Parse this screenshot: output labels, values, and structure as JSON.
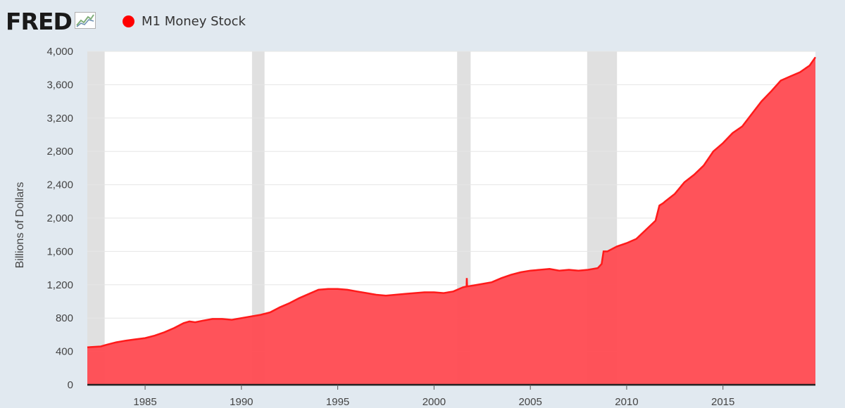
{
  "header": {
    "logo_text": "FRED",
    "logo_icon": "fred-chart-icon",
    "series_name": "M1 Money Stock",
    "series_color": "#ff0000"
  },
  "chart_data": {
    "type": "area",
    "title": "M1 Money Stock",
    "ylabel": "Billions of Dollars",
    "xlabel": "",
    "xlim": [
      1982.0,
      2019.8
    ],
    "ylim": [
      0,
      4000
    ],
    "grid": true,
    "x_ticks": [
      1985,
      1990,
      1995,
      2000,
      2005,
      2010,
      2015
    ],
    "x_tick_labels": [
      "1985",
      "1990",
      "1995",
      "2000",
      "2005",
      "2010",
      "2015"
    ],
    "y_ticks": [
      0,
      400,
      800,
      1200,
      1600,
      2000,
      2400,
      2800,
      3200,
      3600,
      4000
    ],
    "y_tick_labels": [
      "0",
      "400",
      "800",
      "1,200",
      "1,600",
      "2,000",
      "2,400",
      "2,800",
      "3,200",
      "3,600",
      "4,000"
    ],
    "recessions": [
      [
        1982.0,
        1982.9
      ],
      [
        1990.55,
        1991.2
      ],
      [
        2001.2,
        2001.9
      ],
      [
        2007.95,
        2009.5
      ]
    ],
    "colors": {
      "line": "#ff1a1a",
      "area": "#ff4d55",
      "recession": "#e0e0e0",
      "grid": "#e6e6e6"
    },
    "series": [
      {
        "name": "M1 Money Stock",
        "x": [
          1982.0,
          1982.7,
          1983.0,
          1983.5,
          1984.0,
          1984.5,
          1985.0,
          1985.5,
          1986.0,
          1986.5,
          1987.0,
          1987.3,
          1987.6,
          1988.0,
          1988.5,
          1989.0,
          1989.5,
          1990.0,
          1990.5,
          1991.0,
          1991.5,
          1992.0,
          1992.5,
          1993.0,
          1993.5,
          1994.0,
          1994.5,
          1995.0,
          1995.5,
          1996.0,
          1996.5,
          1997.0,
          1997.5,
          1998.0,
          1998.5,
          1999.0,
          1999.5,
          2000.0,
          2000.5,
          2001.0,
          2001.5,
          2001.69,
          2001.7,
          2001.72,
          2002.0,
          2002.5,
          2003.0,
          2003.5,
          2004.0,
          2004.5,
          2005.0,
          2005.5,
          2006.0,
          2006.5,
          2007.0,
          2007.5,
          2008.0,
          2008.5,
          2008.7,
          2008.8,
          2009.0,
          2009.5,
          2010.0,
          2010.5,
          2011.0,
          2011.5,
          2011.7,
          2011.9,
          2012.0,
          2012.5,
          2013.0,
          2013.5,
          2014.0,
          2014.5,
          2015.0,
          2015.5,
          2016.0,
          2016.5,
          2017.0,
          2017.5,
          2018.0,
          2018.5,
          2019.0,
          2019.5,
          2019.8
        ],
        "values": [
          450,
          460,
          480,
          510,
          530,
          545,
          560,
          590,
          630,
          680,
          740,
          760,
          750,
          770,
          790,
          790,
          780,
          800,
          820,
          840,
          870,
          930,
          980,
          1040,
          1090,
          1140,
          1150,
          1150,
          1140,
          1120,
          1100,
          1080,
          1070,
          1080,
          1090,
          1100,
          1110,
          1110,
          1100,
          1120,
          1170,
          1180,
          1280,
          1180,
          1190,
          1210,
          1230,
          1280,
          1320,
          1350,
          1370,
          1380,
          1390,
          1370,
          1380,
          1370,
          1380,
          1400,
          1450,
          1600,
          1600,
          1660,
          1700,
          1750,
          1860,
          1970,
          2150,
          2180,
          2200,
          2290,
          2430,
          2520,
          2630,
          2800,
          2900,
          3020,
          3100,
          3250,
          3400,
          3520,
          3650,
          3700,
          3750,
          3830,
          3930
        ]
      }
    ]
  }
}
